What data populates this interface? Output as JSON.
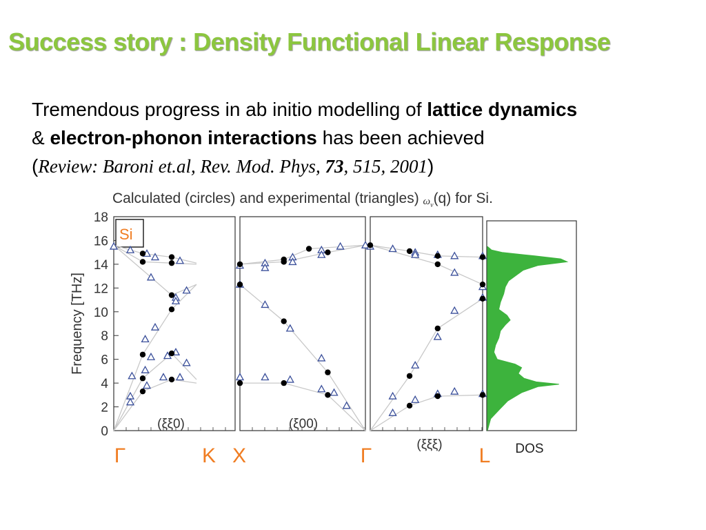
{
  "slide": {
    "title": "Success story : Density Functional Linear Response",
    "line1_normal": "Tremendous progress in ab initio modelling of ",
    "line1_bold": "lattice dynamics",
    "line2_amp": "& ",
    "line2_bold": "electron-phonon interactions",
    "line2_rest": " has been achieved",
    "ref_open": "(",
    "ref_text": "Review: Baroni et.al, Rev. Mod. Phys, ",
    "ref_vol": "73",
    "ref_rest": ", 515, 2001",
    "ref_close": ")"
  },
  "colors": {
    "title": "#8cc63f",
    "dos_fill": "#3db33d",
    "axis": "#333333",
    "point_label": "#f07d22",
    "triangle": "#3a4f9a",
    "circle": "#000000",
    "curve": "#c8c8c8"
  },
  "chart_data": {
    "type": "scatter",
    "title_parts": [
      "Calculated (circles) and experimental (triangles) ",
      "ω",
      "ν",
      "(q) for Si."
    ],
    "ylabel": "Frequency [THz]",
    "ylim": [
      0,
      18
    ],
    "yticks": [
      0,
      2,
      4,
      6,
      8,
      10,
      12,
      14,
      16,
      18
    ],
    "material_label": "Si",
    "direction_labels": [
      "(ξξ0)",
      "(ξ00)",
      "(ξξξ)"
    ],
    "high_symmetry_points": [
      "Γ",
      "K",
      "X",
      "Γ",
      "L"
    ],
    "dos_label": "DOS",
    "panels": [
      {
        "name": "Γ-K",
        "circles": [
          [
            0.35,
            14.9
          ],
          [
            0.35,
            14.2
          ],
          [
            0.7,
            14.6
          ],
          [
            0.7,
            14.1
          ],
          [
            0.7,
            11.4
          ],
          [
            0.7,
            10.2
          ],
          [
            0.35,
            6.4
          ],
          [
            0.7,
            6.5
          ],
          [
            0.35,
            4.4
          ],
          [
            0.7,
            4.3
          ],
          [
            0.35,
            3.3
          ]
        ],
        "triangles": [
          [
            0.0,
            15.5
          ],
          [
            0.2,
            15.2
          ],
          [
            0.4,
            14.9
          ],
          [
            0.5,
            14.6
          ],
          [
            0.8,
            14.3
          ],
          [
            0.45,
            12.9
          ],
          [
            0.75,
            11.2
          ],
          [
            0.75,
            10.9
          ],
          [
            0.88,
            11.8
          ],
          [
            0.5,
            8.7
          ],
          [
            0.38,
            7.7
          ],
          [
            0.22,
            4.6
          ],
          [
            0.45,
            6.2
          ],
          [
            0.65,
            6.3
          ],
          [
            0.75,
            6.6
          ],
          [
            0.88,
            5.7
          ],
          [
            0.38,
            5.1
          ],
          [
            0.6,
            4.5
          ],
          [
            0.8,
            4.5
          ],
          [
            0.2,
            2.9
          ],
          [
            0.2,
            2.4
          ],
          [
            0.4,
            3.8
          ]
        ]
      },
      {
        "name": "X-Γ",
        "circles": [
          [
            0.0,
            14.0
          ],
          [
            0.0,
            12.3
          ],
          [
            0.0,
            4.0
          ],
          [
            0.35,
            14.4
          ],
          [
            0.35,
            14.2
          ],
          [
            0.55,
            15.3
          ],
          [
            0.7,
            15.0
          ],
          [
            0.35,
            9.2
          ],
          [
            0.7,
            4.9
          ],
          [
            0.35,
            4.0
          ],
          [
            0.7,
            3.0
          ]
        ],
        "triangles": [
          [
            0.0,
            13.9
          ],
          [
            0.0,
            12.3
          ],
          [
            0.0,
            4.5
          ],
          [
            0.2,
            14.1
          ],
          [
            0.2,
            13.7
          ],
          [
            0.42,
            14.6
          ],
          [
            0.42,
            14.2
          ],
          [
            0.65,
            15.2
          ],
          [
            0.65,
            14.8
          ],
          [
            0.8,
            15.5
          ],
          [
            1.0,
            15.6
          ],
          [
            0.2,
            10.6
          ],
          [
            0.4,
            8.6
          ],
          [
            0.65,
            6.1
          ],
          [
            0.65,
            3.5
          ],
          [
            0.2,
            4.5
          ],
          [
            0.4,
            4.3
          ],
          [
            0.75,
            3.2
          ],
          [
            0.85,
            2.1
          ]
        ]
      },
      {
        "name": "Γ-L",
        "circles": [
          [
            0.0,
            15.6
          ],
          [
            0.35,
            15.1
          ],
          [
            0.6,
            14.7
          ],
          [
            0.6,
            14.0
          ],
          [
            1.0,
            14.6
          ],
          [
            1.0,
            12.3
          ],
          [
            1.0,
            11.1
          ],
          [
            0.6,
            8.6
          ],
          [
            0.35,
            4.6
          ],
          [
            0.35,
            2.1
          ],
          [
            0.6,
            2.9
          ],
          [
            1.0,
            3.0
          ]
        ],
        "triangles": [
          [
            0.0,
            15.5
          ],
          [
            0.2,
            15.3
          ],
          [
            0.4,
            15.0
          ],
          [
            0.4,
            14.8
          ],
          [
            0.6,
            14.8
          ],
          [
            0.75,
            14.7
          ],
          [
            0.75,
            13.3
          ],
          [
            1.0,
            14.7
          ],
          [
            1.0,
            12.1
          ],
          [
            1.0,
            11.2
          ],
          [
            0.75,
            10.1
          ],
          [
            0.6,
            7.9
          ],
          [
            0.4,
            5.5
          ],
          [
            0.2,
            2.9
          ],
          [
            0.2,
            1.5
          ],
          [
            0.4,
            2.6
          ],
          [
            0.6,
            3.1
          ],
          [
            0.75,
            3.3
          ],
          [
            1.0,
            3.1
          ]
        ]
      }
    ],
    "dos_profile": [
      [
        0.0,
        0.0
      ],
      [
        1.0,
        0.04
      ],
      [
        1.8,
        0.15
      ],
      [
        2.5,
        0.25
      ],
      [
        3.2,
        0.42
      ],
      [
        3.7,
        0.62
      ],
      [
        3.9,
        0.88
      ],
      [
        4.1,
        0.6
      ],
      [
        4.4,
        0.45
      ],
      [
        4.8,
        0.38
      ],
      [
        5.3,
        0.42
      ],
      [
        5.6,
        0.34
      ],
      [
        6.0,
        0.12
      ],
      [
        6.6,
        0.08
      ],
      [
        7.2,
        0.1
      ],
      [
        7.8,
        0.14
      ],
      [
        8.4,
        0.16
      ],
      [
        8.9,
        0.22
      ],
      [
        9.3,
        0.28
      ],
      [
        9.7,
        0.24
      ],
      [
        10.2,
        0.14
      ],
      [
        10.8,
        0.16
      ],
      [
        11.5,
        0.2
      ],
      [
        12.1,
        0.22
      ],
      [
        12.6,
        0.26
      ],
      [
        13.0,
        0.34
      ],
      [
        13.5,
        0.44
      ],
      [
        13.9,
        0.62
      ],
      [
        14.2,
        0.98
      ],
      [
        14.45,
        0.9
      ],
      [
        14.7,
        0.58
      ],
      [
        15.0,
        0.18
      ],
      [
        15.2,
        0.05
      ],
      [
        15.5,
        0.0
      ]
    ]
  }
}
